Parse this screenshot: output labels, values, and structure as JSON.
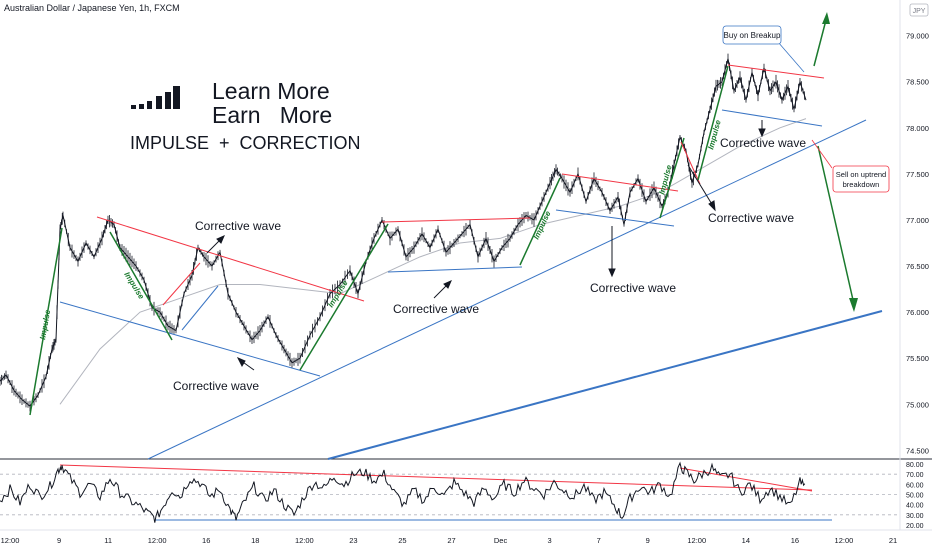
{
  "header": {
    "symbol_line": "Australian Dollar / Japanese Yen, 1h, FXCM"
  },
  "currency_badge": "JPY",
  "headline": {
    "line1": "Learn More",
    "line2": "Earn   More",
    "line3": "IMPULSE  +  CORRECTION"
  },
  "annotations": {
    "corrective_wave": "Corrective wave",
    "impulse": "Impulse",
    "buy_on_breakup": "Buy on Breakup",
    "sell_line1": "Sell on uptrend",
    "sell_line2": "breakdown"
  },
  "colors": {
    "impulse": "#1b7a2e",
    "resistance": "#f23645",
    "support": "#3a75c4",
    "price": "#131722",
    "ma": "#b2b5be",
    "arrow_up": "#1b7a2e"
  },
  "chart_data": [
    {
      "type": "line",
      "series": [
        {
          "name": "",
          "values_note": "hourly closes"
        }
      ],
      "y_ticks": [
        "79.000",
        "78.500",
        "78.000",
        "77.500",
        "77.000",
        "76.500",
        "76.000",
        "75.500",
        "75.000",
        "74.500"
      ],
      "ylim": [
        74.45,
        79.3
      ],
      "x_ticks": [
        "12:00",
        "9",
        "11",
        "12:00",
        "16",
        "18",
        "12:00",
        "23",
        "25",
        "27",
        "Dec",
        "3",
        "7",
        "9",
        "12:00",
        "14",
        "16",
        "12:00",
        "21"
      ],
      "price_path": [
        [
          0,
          75.25
        ],
        [
          6,
          75.32
        ],
        [
          14,
          75.15
        ],
        [
          22,
          75.05
        ],
        [
          30,
          74.98
        ],
        [
          38,
          75.1
        ],
        [
          46,
          75.3
        ],
        [
          52,
          75.6
        ],
        [
          56,
          75.7
        ],
        [
          60,
          76.9
        ],
        [
          63,
          77.05
        ],
        [
          70,
          76.7
        ],
        [
          78,
          76.55
        ],
        [
          86,
          76.75
        ],
        [
          94,
          76.6
        ],
        [
          102,
          76.8
        ],
        [
          108,
          77.0
        ],
        [
          114,
          76.95
        ],
        [
          120,
          76.7
        ],
        [
          128,
          76.6
        ],
        [
          136,
          76.5
        ],
        [
          144,
          76.35
        ],
        [
          152,
          76.05
        ],
        [
          160,
          76.0
        ],
        [
          168,
          75.85
        ],
        [
          176,
          75.8
        ],
        [
          184,
          76.2
        ],
        [
          192,
          76.4
        ],
        [
          198,
          76.7
        ],
        [
          204,
          76.6
        ],
        [
          212,
          76.5
        ],
        [
          220,
          76.65
        ],
        [
          228,
          76.2
        ],
        [
          236,
          76.0
        ],
        [
          244,
          75.85
        ],
        [
          252,
          75.7
        ],
        [
          260,
          75.8
        ],
        [
          268,
          75.95
        ],
        [
          276,
          75.75
        ],
        [
          284,
          75.6
        ],
        [
          292,
          75.45
        ],
        [
          300,
          75.5
        ],
        [
          310,
          75.75
        ],
        [
          320,
          75.95
        ],
        [
          330,
          76.2
        ],
        [
          340,
          76.3
        ],
        [
          350,
          76.45
        ],
        [
          358,
          76.2
        ],
        [
          366,
          76.55
        ],
        [
          374,
          76.8
        ],
        [
          382,
          77.0
        ],
        [
          390,
          76.8
        ],
        [
          398,
          76.9
        ],
        [
          406,
          76.6
        ],
        [
          414,
          76.7
        ],
        [
          422,
          76.85
        ],
        [
          430,
          76.7
        ],
        [
          438,
          76.9
        ],
        [
          446,
          76.65
        ],
        [
          454,
          76.75
        ],
        [
          462,
          76.85
        ],
        [
          470,
          76.95
        ],
        [
          478,
          76.6
        ],
        [
          486,
          76.8
        ],
        [
          494,
          76.55
        ],
        [
          502,
          76.7
        ],
        [
          510,
          76.8
        ],
        [
          518,
          76.95
        ],
        [
          526,
          77.05
        ],
        [
          534,
          77.0
        ],
        [
          542,
          77.2
        ],
        [
          550,
          77.4
        ],
        [
          556,
          77.55
        ],
        [
          562,
          77.45
        ],
        [
          570,
          77.3
        ],
        [
          578,
          77.5
        ],
        [
          586,
          77.2
        ],
        [
          594,
          77.45
        ],
        [
          602,
          77.3
        ],
        [
          610,
          77.1
        ],
        [
          618,
          77.25
        ],
        [
          624,
          76.95
        ],
        [
          630,
          77.3
        ],
        [
          638,
          77.45
        ],
        [
          646,
          77.2
        ],
        [
          654,
          77.35
        ],
        [
          662,
          77.15
        ],
        [
          668,
          77.3
        ],
        [
          674,
          77.6
        ],
        [
          680,
          77.9
        ],
        [
          686,
          77.75
        ],
        [
          692,
          77.4
        ],
        [
          698,
          77.6
        ],
        [
          704,
          77.95
        ],
        [
          710,
          78.2
        ],
        [
          716,
          78.45
        ],
        [
          722,
          78.5
        ],
        [
          728,
          78.75
        ],
        [
          734,
          78.4
        ],
        [
          740,
          78.55
        ],
        [
          746,
          78.3
        ],
        [
          752,
          78.6
        ],
        [
          758,
          78.35
        ],
        [
          764,
          78.65
        ],
        [
          770,
          78.4
        ],
        [
          776,
          78.5
        ],
        [
          782,
          78.3
        ],
        [
          788,
          78.45
        ],
        [
          794,
          78.2
        ],
        [
          800,
          78.5
        ],
        [
          806,
          78.3
        ]
      ],
      "ma_path": [
        [
          60,
          75.0
        ],
        [
          100,
          75.6
        ],
        [
          140,
          76.0
        ],
        [
          180,
          76.15
        ],
        [
          220,
          76.3
        ],
        [
          260,
          76.3
        ],
        [
          300,
          76.25
        ],
        [
          340,
          76.2
        ],
        [
          380,
          76.4
        ],
        [
          420,
          76.6
        ],
        [
          460,
          76.75
        ],
        [
          500,
          76.8
        ],
        [
          540,
          76.95
        ],
        [
          580,
          77.05
        ],
        [
          620,
          77.15
        ],
        [
          660,
          77.3
        ],
        [
          700,
          77.55
        ],
        [
          740,
          77.8
        ],
        [
          780,
          78.0
        ],
        [
          806,
          78.1
        ]
      ]
    },
    {
      "type": "line",
      "series": [
        {
          "name": "",
          "values_note": "oscillator"
        }
      ],
      "y_ticks": [
        "80.00",
        "70.00",
        "60.00",
        "50.00",
        "40.00",
        "30.00",
        "20.00"
      ],
      "ylim": [
        17,
        83
      ],
      "osc_path": [
        [
          0,
          45
        ],
        [
          10,
          55
        ],
        [
          20,
          42
        ],
        [
          30,
          60
        ],
        [
          40,
          48
        ],
        [
          50,
          58
        ],
        [
          58,
          74
        ],
        [
          62,
          79
        ],
        [
          70,
          66
        ],
        [
          80,
          52
        ],
        [
          90,
          60
        ],
        [
          100,
          48
        ],
        [
          110,
          66
        ],
        [
          120,
          52
        ],
        [
          130,
          44
        ],
        [
          140,
          38
        ],
        [
          150,
          30
        ],
        [
          156,
          26
        ],
        [
          164,
          40
        ],
        [
          172,
          55
        ],
        [
          180,
          48
        ],
        [
          190,
          66
        ],
        [
          200,
          62
        ],
        [
          210,
          48
        ],
        [
          220,
          55
        ],
        [
          230,
          35
        ],
        [
          236,
          26
        ],
        [
          244,
          42
        ],
        [
          254,
          58
        ],
        [
          264,
          44
        ],
        [
          274,
          54
        ],
        [
          284,
          40
        ],
        [
          294,
          30
        ],
        [
          304,
          48
        ],
        [
          314,
          62
        ],
        [
          324,
          56
        ],
        [
          334,
          68
        ],
        [
          344,
          60
        ],
        [
          354,
          70
        ],
        [
          364,
          72
        ],
        [
          374,
          64
        ],
        [
          384,
          70
        ],
        [
          394,
          52
        ],
        [
          404,
          40
        ],
        [
          414,
          54
        ],
        [
          424,
          44
        ],
        [
          434,
          58
        ],
        [
          444,
          48
        ],
        [
          454,
          62
        ],
        [
          464,
          52
        ],
        [
          474,
          42
        ],
        [
          484,
          56
        ],
        [
          494,
          46
        ],
        [
          504,
          60
        ],
        [
          514,
          52
        ],
        [
          524,
          64
        ],
        [
          534,
          56
        ],
        [
          544,
          50
        ],
        [
          554,
          62
        ],
        [
          564,
          54
        ],
        [
          574,
          48
        ],
        [
          584,
          58
        ],
        [
          594,
          44
        ],
        [
          604,
          52
        ],
        [
          614,
          40
        ],
        [
          622,
          28
        ],
        [
          630,
          46
        ],
        [
          640,
          58
        ],
        [
          650,
          52
        ],
        [
          660,
          60
        ],
        [
          670,
          48
        ],
        [
          680,
          78
        ],
        [
          686,
          72
        ],
        [
          694,
          64
        ],
        [
          702,
          70
        ],
        [
          712,
          76
        ],
        [
          720,
          66
        ],
        [
          730,
          70
        ],
        [
          740,
          52
        ],
        [
          750,
          60
        ],
        [
          760,
          46
        ],
        [
          770,
          56
        ],
        [
          780,
          48
        ],
        [
          790,
          38
        ],
        [
          800,
          62
        ],
        [
          806,
          56
        ]
      ]
    }
  ]
}
